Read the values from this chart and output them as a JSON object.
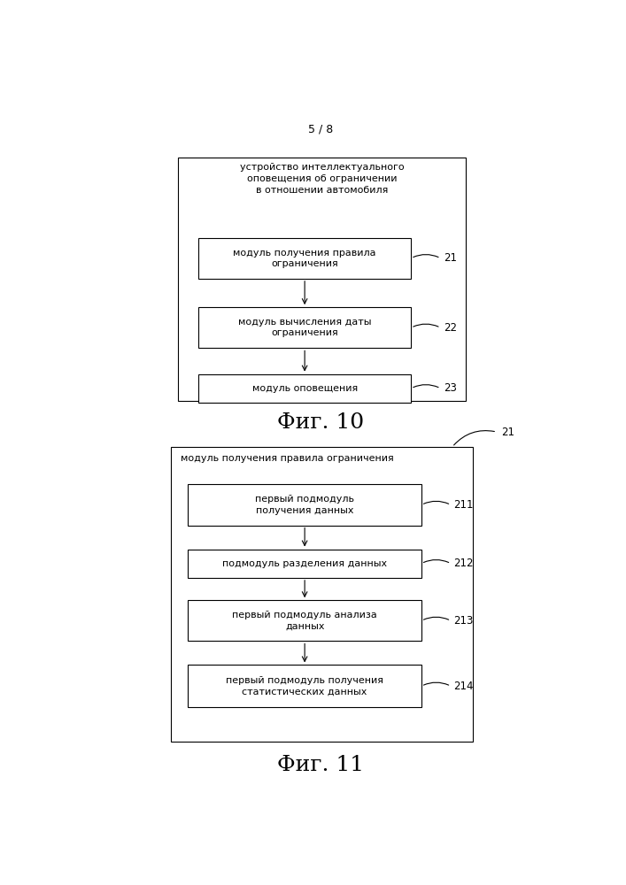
{
  "page_label": "5 / 8",
  "fig10_title": "Фиг. 10",
  "fig11_title": "Фиг. 11",
  "fig10_outer_label": "устройство интеллектуального\nоповещения об ограничении\nв отношении автомобиля",
  "fig10_boxes": [
    {
      "label": "модуль получения правила\nограничения",
      "id": "21"
    },
    {
      "label": "модуль вычисления даты\nограничения",
      "id": "22"
    },
    {
      "label": "модуль оповещения",
      "id": "23"
    }
  ],
  "fig11_outer_label": "21",
  "fig11_title_text": "модуль получения правила ограничения",
  "fig11_boxes": [
    {
      "label": "первый подмодуль\nполучения данных",
      "id": "211"
    },
    {
      "label": "подмодуль разделения данных",
      "id": "212"
    },
    {
      "label": "первый подмодуль анализа\nданных",
      "id": "213"
    },
    {
      "label": "первый подмодуль получения\nстатистических данных",
      "id": "214"
    }
  ],
  "bg_color": "#ffffff",
  "box_facecolor": "#ffffff",
  "box_edgecolor": "#000000",
  "outer_edgecolor": "#000000",
  "text_color": "#000000",
  "line_color": "#000000"
}
